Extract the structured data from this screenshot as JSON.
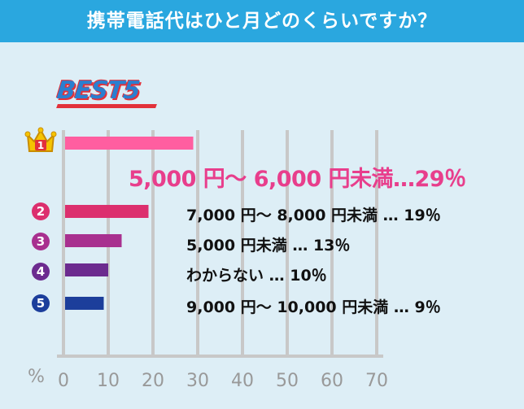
{
  "title": "携帯電話代はひと月どのくらいですか？",
  "badge": "BEST5",
  "axis_unit": "%",
  "colors": {
    "title_bg": "#2aa7df",
    "background": "#ddeef6",
    "grid": "#c8c8c8",
    "tick_text": "#999999",
    "top_label": "#e83e8c"
  },
  "ranks": [
    {
      "rank": "1",
      "icon": "crown-icon"
    },
    {
      "rank": "2"
    },
    {
      "rank": "3"
    },
    {
      "rank": "4"
    },
    {
      "rank": "5"
    }
  ],
  "labels": [
    "5,000 円～ 6,000 円未満…29％",
    "7,000 円～ 8,000 円未満 … 19％",
    "5,000 円未満 … 13％",
    "わからない … 10％",
    "9,000 円～ 10,000 円未満 … 9％"
  ],
  "chart_data": {
    "type": "bar",
    "orientation": "horizontal",
    "categories": [
      "5,000 円～ 6,000 円未満",
      "7,000 円～ 8,000 円未満",
      "5,000 円未満",
      "わからない",
      "9,000 円～ 10,000 円未満"
    ],
    "values": [
      29,
      19,
      13,
      10,
      9
    ],
    "bar_colors": [
      "#ff5ea0",
      "#dc2f6e",
      "#a8308f",
      "#6c2b8f",
      "#1c3e9b"
    ],
    "title": "携帯電話代はひと月どのくらいですか？",
    "xlabel": "%",
    "ylabel": "",
    "xlim": [
      0,
      70
    ],
    "xticks": [
      0,
      10,
      20,
      30,
      40,
      50,
      60,
      70
    ],
    "grid": true
  }
}
